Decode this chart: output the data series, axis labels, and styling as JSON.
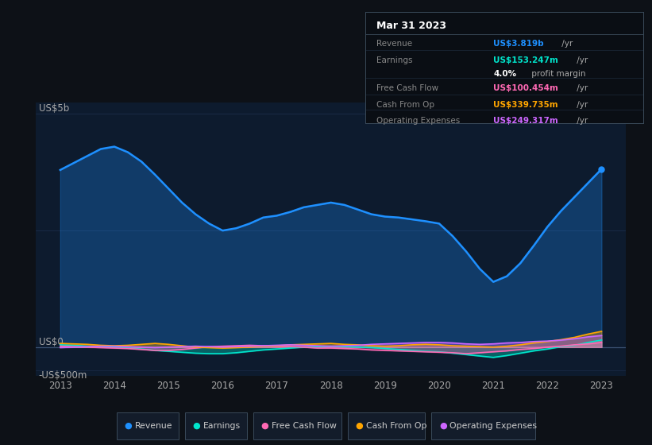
{
  "bg_color": "#0d1117",
  "plot_bg_color": "#0d1b2e",
  "years": [
    2013.0,
    2013.25,
    2013.5,
    2013.75,
    2014.0,
    2014.25,
    2014.5,
    2014.75,
    2015.0,
    2015.25,
    2015.5,
    2015.75,
    2016.0,
    2016.25,
    2016.5,
    2016.75,
    2017.0,
    2017.25,
    2017.5,
    2017.75,
    2018.0,
    2018.25,
    2018.5,
    2018.75,
    2019.0,
    2019.25,
    2019.5,
    2019.75,
    2020.0,
    2020.25,
    2020.5,
    2020.75,
    2021.0,
    2021.25,
    2021.5,
    2021.75,
    2022.0,
    2022.25,
    2022.5,
    2022.75,
    2023.0
  ],
  "revenue": [
    3.8,
    3.95,
    4.1,
    4.25,
    4.3,
    4.18,
    3.98,
    3.7,
    3.4,
    3.1,
    2.85,
    2.65,
    2.5,
    2.55,
    2.65,
    2.78,
    2.82,
    2.9,
    3.0,
    3.05,
    3.1,
    3.05,
    2.95,
    2.85,
    2.8,
    2.78,
    2.74,
    2.7,
    2.65,
    2.38,
    2.05,
    1.68,
    1.4,
    1.52,
    1.8,
    2.18,
    2.58,
    2.92,
    3.22,
    3.52,
    3.819
  ],
  "earnings": [
    0.05,
    0.04,
    0.02,
    0.01,
    0.0,
    -0.02,
    -0.04,
    -0.07,
    -0.09,
    -0.11,
    -0.13,
    -0.14,
    -0.14,
    -0.12,
    -0.09,
    -0.06,
    -0.04,
    -0.02,
    0.0,
    0.01,
    0.02,
    0.01,
    0.0,
    -0.01,
    -0.03,
    -0.05,
    -0.07,
    -0.09,
    -0.1,
    -0.13,
    -0.16,
    -0.19,
    -0.22,
    -0.18,
    -0.13,
    -0.08,
    -0.04,
    0.01,
    0.04,
    0.1,
    0.153
  ],
  "free_cash_flow": [
    0.02,
    0.01,
    0.0,
    -0.01,
    -0.02,
    -0.03,
    -0.05,
    -0.07,
    -0.07,
    -0.05,
    -0.02,
    0.01,
    0.02,
    0.03,
    0.04,
    0.03,
    0.02,
    0.01,
    0.0,
    -0.02,
    -0.02,
    -0.03,
    -0.04,
    -0.06,
    -0.07,
    -0.08,
    -0.09,
    -0.1,
    -0.11,
    -0.12,
    -0.14,
    -0.12,
    -0.1,
    -0.08,
    -0.05,
    -0.03,
    0.0,
    0.02,
    0.05,
    0.07,
    0.1
  ],
  "cash_from_op": [
    0.08,
    0.07,
    0.06,
    0.04,
    0.03,
    0.04,
    0.06,
    0.08,
    0.06,
    0.03,
    0.0,
    -0.01,
    -0.02,
    -0.01,
    0.0,
    0.02,
    0.03,
    0.05,
    0.06,
    0.07,
    0.08,
    0.06,
    0.05,
    0.03,
    0.02,
    0.03,
    0.05,
    0.06,
    0.05,
    0.03,
    0.02,
    0.01,
    0.0,
    0.02,
    0.05,
    0.09,
    0.12,
    0.16,
    0.21,
    0.28,
    0.339
  ],
  "operating_expenses": [
    -0.01,
    0.0,
    0.01,
    0.02,
    0.02,
    0.01,
    0.0,
    -0.01,
    0.0,
    0.01,
    0.02,
    0.01,
    0.0,
    0.01,
    0.02,
    0.03,
    0.04,
    0.05,
    0.04,
    0.03,
    0.02,
    0.03,
    0.04,
    0.06,
    0.07,
    0.08,
    0.09,
    0.1,
    0.1,
    0.09,
    0.07,
    0.06,
    0.07,
    0.09,
    0.1,
    0.12,
    0.13,
    0.15,
    0.18,
    0.22,
    0.249
  ],
  "revenue_color": "#1e90ff",
  "earnings_color": "#00e5cc",
  "fcf_color": "#ff69b4",
  "cfop_color": "#ffa500",
  "opex_color": "#cc66ff",
  "ylim_low": -0.62,
  "ylim_high": 5.25,
  "xlim_low": 2012.55,
  "xlim_high": 2023.45,
  "xticks": [
    2013,
    2014,
    2015,
    2016,
    2017,
    2018,
    2019,
    2020,
    2021,
    2022,
    2023
  ],
  "grid_color": "#1e3050",
  "zero_line_color": "#3a5070",
  "legend_labels": [
    "Revenue",
    "Earnings",
    "Free Cash Flow",
    "Cash From Op",
    "Operating Expenses"
  ],
  "legend_colors": [
    "#1e90ff",
    "#00e5cc",
    "#ff69b4",
    "#ffa500",
    "#cc66ff"
  ],
  "tooltip_title": "Mar 31 2023",
  "tooltip_rows": [
    {
      "label": "Revenue",
      "val_colored": "US$3.819b",
      "val_color": "#1e90ff",
      "suffix": " /yr",
      "sub": null
    },
    {
      "label": "Earnings",
      "val_colored": "US$153.247m",
      "val_color": "#00e5cc",
      "suffix": " /yr",
      "sub": "4.0% profit margin"
    },
    {
      "label": "Free Cash Flow",
      "val_colored": "US$100.454m",
      "val_color": "#ff69b4",
      "suffix": " /yr",
      "sub": null
    },
    {
      "label": "Cash From Op",
      "val_colored": "US$339.735m",
      "val_color": "#ffa500",
      "suffix": " /yr",
      "sub": null
    },
    {
      "label": "Operating Expenses",
      "val_colored": "US$249.317m",
      "val_color": "#cc66ff",
      "suffix": " /yr",
      "sub": null
    }
  ]
}
